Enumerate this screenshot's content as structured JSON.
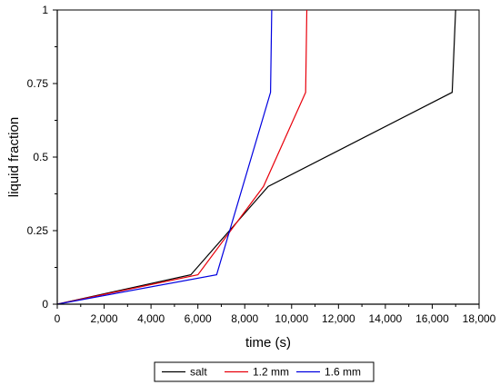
{
  "chart_data": {
    "type": "line",
    "title": "",
    "xlabel": "time (s)",
    "ylabel": "liquid fraction",
    "xlim": [
      0,
      18000
    ],
    "ylim": [
      0,
      1
    ],
    "x_ticks": [
      0,
      2000,
      4000,
      6000,
      8000,
      10000,
      12000,
      14000,
      16000,
      18000
    ],
    "x_tick_labels": [
      "0",
      "2,000",
      "4,000",
      "6,000",
      "8,000",
      "10,000",
      "12,000",
      "14,000",
      "16,000",
      "18,000"
    ],
    "y_ticks": [
      0,
      0.25,
      0.5,
      0.75,
      1
    ],
    "y_tick_labels": [
      "0",
      "0.25",
      "0.5",
      "0.75",
      "1"
    ],
    "grid": false,
    "legend_position": "bottom-center",
    "series": [
      {
        "name": "salt",
        "color": "#000000",
        "points": [
          [
            0,
            0
          ],
          [
            5700,
            0.1
          ],
          [
            9000,
            0.4
          ],
          [
            16850,
            0.72
          ],
          [
            17000,
            1.0
          ]
        ]
      },
      {
        "name": "1.2 mm",
        "color": "#e8000b",
        "points": [
          [
            0,
            0
          ],
          [
            6000,
            0.1
          ],
          [
            8800,
            0.4
          ],
          [
            10600,
            0.72
          ],
          [
            10650,
            1.0
          ]
        ]
      },
      {
        "name": "1.6 mm",
        "color": "#0000e0",
        "points": [
          [
            0,
            0
          ],
          [
            6800,
            0.1
          ],
          [
            9100,
            0.72
          ],
          [
            9150,
            1.0
          ]
        ]
      }
    ]
  }
}
